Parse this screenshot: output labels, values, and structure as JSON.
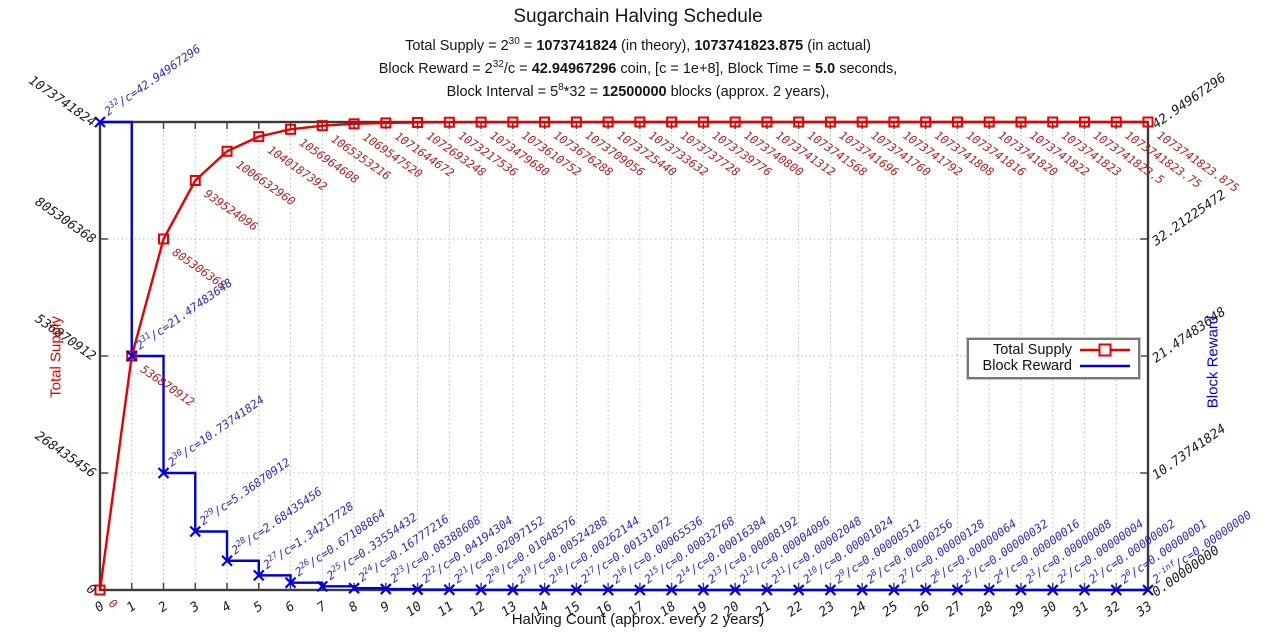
{
  "title": "Sugarchain Halving Schedule",
  "subtitle": {
    "line1": {
      "pre": "Total Supply = 2",
      "sup": "30",
      "mid": " = ",
      "bold1": "1073741824",
      "mid2": " (in theory), ",
      "bold2": "1073741823.875",
      "post": " (in actual)"
    },
    "line2": {
      "pre": "Block Reward = 2",
      "sup": "32",
      "mid": "/c = ",
      "bold1": "42.94967296",
      "mid2": " coin, [c = 1e+8], Block Time = ",
      "bold2": "5.0",
      "post": " seconds,"
    },
    "line3": {
      "pre": "Block Interval = 5",
      "sup": "8",
      "mid": "*32 = ",
      "bold1": "12500000",
      "post": " blocks (approx. 2 years),"
    }
  },
  "legend": {
    "items": [
      {
        "label": "Total Supply",
        "color": "#e60000",
        "marker": "open-square"
      },
      {
        "label": "Block Reward",
        "color": "#0000dd",
        "marker": "line"
      }
    ]
  },
  "axes": {
    "x_label": "Halving Count (approx. every 2 years)",
    "y_left_label": "Total Supply",
    "y_right_label": "Block Reward"
  },
  "chart_data": {
    "type": "line",
    "title": "Sugarchain Halving Schedule",
    "xlabel": "Halving Count (approx. every 2 years)",
    "grid": true,
    "legend_position": "right-middle",
    "x": [
      0,
      1,
      2,
      3,
      4,
      5,
      6,
      7,
      8,
      9,
      10,
      11,
      12,
      13,
      14,
      15,
      16,
      17,
      18,
      19,
      20,
      21,
      22,
      23,
      24,
      25,
      26,
      27,
      28,
      29,
      30,
      31,
      32,
      33
    ],
    "y_left": {
      "label": "Total Supply",
      "range": [
        0,
        1073741824
      ],
      "tick_values": [
        0,
        268435456,
        536870912,
        805306368,
        1073741824
      ],
      "tick_labels": [
        "0",
        "268435456",
        "536870912",
        "805306368",
        "1073741824"
      ]
    },
    "y_right": {
      "label": "Block Reward",
      "range": [
        0,
        42.94967296
      ],
      "tick_values": [
        0,
        10.73741824,
        21.47483648,
        32.21225472,
        42.94967296
      ],
      "tick_labels": [
        "0.00000000",
        "10.73741824",
        "21.47483648",
        "32.21225472",
        "42.94967296"
      ]
    },
    "series": [
      {
        "name": "Total Supply",
        "axis": "left",
        "color": "#e60000",
        "label_color": "#b22222",
        "marker": "open-square",
        "style": "linespoints",
        "values": [
          0,
          536870912,
          805306368,
          939524096,
          1006632960,
          1040187392,
          1056964608,
          1065353216,
          1069547520,
          1071644672,
          1072693248,
          1073217536,
          1073479680,
          1073610752,
          1073676288,
          1073709056,
          1073725440,
          1073733632,
          1073737728,
          1073739776,
          1073740800,
          1073741312,
          1073741568,
          1073741696,
          1073741760,
          1073741792,
          1073741808,
          1073741816,
          1073741820,
          1073741822,
          1073741823,
          1073741823.5,
          1073741823.75,
          1073741823.875
        ],
        "point_labels": [
          "0",
          "536870912",
          "805306368",
          "939524096",
          "1006632960",
          "1040187392",
          "1056964608",
          "1065353216",
          "1069547520",
          "1071644672",
          "1072693248",
          "1073217536",
          "1073479680",
          "1073610752",
          "1073676288",
          "1073709056",
          "1073725440",
          "1073733632",
          "1073737728",
          "1073739776",
          "1073740800",
          "1073741312",
          "1073741568",
          "1073741696",
          "1073741760",
          "1073741792",
          "1073741808",
          "1073741816",
          "1073741820",
          "1073741822",
          "1073741823",
          "1073741823.5",
          "1073741823.75",
          "1073741823.875"
        ]
      },
      {
        "name": "Block Reward",
        "axis": "right",
        "color": "#0000dd",
        "label_color": "#2d2dbe",
        "marker": "x",
        "style": "steps-post",
        "values": [
          42.94967296,
          21.47483648,
          10.73741824,
          5.36870912,
          2.68435456,
          1.34217728,
          0.67108864,
          0.33554432,
          0.16777216,
          0.08388608,
          0.04194304,
          0.02097152,
          0.01048576,
          0.00524288,
          0.00262144,
          0.00131072,
          0.00065536,
          0.00032768,
          0.00016384,
          8.192e-05,
          4.096e-05,
          2.048e-05,
          1.024e-05,
          5.12e-06,
          2.56e-06,
          1.28e-06,
          6.4e-07,
          3.2e-07,
          1.6e-07,
          8e-08,
          4e-08,
          2e-08,
          1e-08,
          0
        ],
        "point_labels": [
          {
            "exp": "32",
            "value": "42.94967296"
          },
          {
            "exp": "31",
            "value": "21.47483648"
          },
          {
            "exp": "30",
            "value": "10.73741824"
          },
          {
            "exp": "29",
            "value": "5.36870912"
          },
          {
            "exp": "28",
            "value": "2.68435456"
          },
          {
            "exp": "27",
            "value": "1.34217728"
          },
          {
            "exp": "26",
            "value": "0.67108864"
          },
          {
            "exp": "25",
            "value": "0.33554432"
          },
          {
            "exp": "24",
            "value": "0.16777216"
          },
          {
            "exp": "23",
            "value": "0.08388608"
          },
          {
            "exp": "22",
            "value": "0.04194304"
          },
          {
            "exp": "21",
            "value": "0.02097152"
          },
          {
            "exp": "20",
            "value": "0.01048576"
          },
          {
            "exp": "19",
            "value": "0.00524288"
          },
          {
            "exp": "18",
            "value": "0.00262144"
          },
          {
            "exp": "17",
            "value": "0.00131072"
          },
          {
            "exp": "16",
            "value": "0.00065536"
          },
          {
            "exp": "15",
            "value": "0.00032768"
          },
          {
            "exp": "14",
            "value": "0.00016384"
          },
          {
            "exp": "13",
            "value": "0.00008192"
          },
          {
            "exp": "12",
            "value": "0.00004096"
          },
          {
            "exp": "11",
            "value": "0.00002048"
          },
          {
            "exp": "10",
            "value": "0.00001024"
          },
          {
            "exp": "9",
            "value": "0.00000512"
          },
          {
            "exp": "8",
            "value": "0.00000256"
          },
          {
            "exp": "7",
            "value": "0.00000128"
          },
          {
            "exp": "6",
            "value": "0.00000064"
          },
          {
            "exp": "5",
            "value": "0.00000032"
          },
          {
            "exp": "4",
            "value": "0.00000016"
          },
          {
            "exp": "3",
            "value": "0.00000008"
          },
          {
            "exp": "2",
            "value": "0.00000004"
          },
          {
            "exp": "1",
            "value": "0.00000002"
          },
          {
            "exp": "0",
            "value": "0.00000001"
          },
          {
            "exp": "-inf",
            "value": "0.00000000"
          }
        ]
      }
    ]
  }
}
